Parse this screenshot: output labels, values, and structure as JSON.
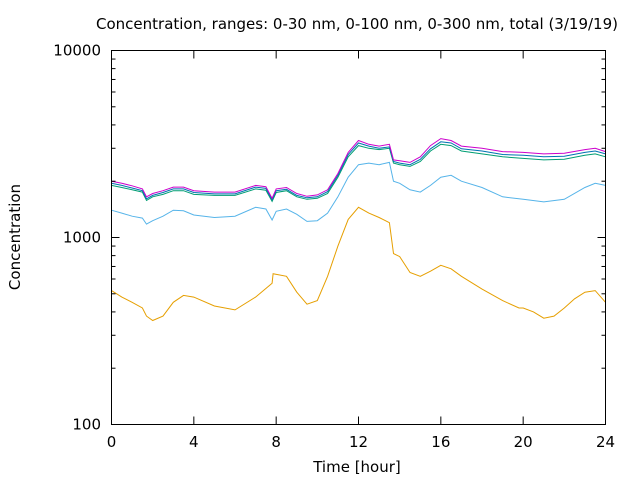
{
  "chart_data": {
    "type": "line",
    "title": "Concentration, ranges: 0-30 nm, 0-100 nm, 0-300 nm, total (3/19/19)",
    "xlabel": "Time [hour]",
    "ylabel": "Concentration",
    "xlim": [
      0,
      24
    ],
    "ylim": [
      100,
      10000
    ],
    "yscale": "log",
    "grid": false,
    "legend": "none",
    "xticks": [
      0,
      4,
      8,
      12,
      16,
      20,
      24
    ],
    "xtick_labels": [
      "0",
      "4",
      "8",
      "12",
      "16",
      "20",
      "24"
    ],
    "yticks": [
      100,
      1000,
      10000
    ],
    "ytick_labels": [
      "100",
      "1000",
      "10000"
    ],
    "series": [
      {
        "color": "#e69f00",
        "x": [
          0,
          0.5,
          1,
          1.5,
          1.7,
          2,
          2.5,
          3,
          3.5,
          4,
          5,
          6,
          7,
          7.8,
          7.85,
          8.5,
          9,
          9.5,
          10,
          10.5,
          11,
          11.5,
          12,
          12.5,
          13,
          13.5,
          13.7,
          14,
          14.5,
          15,
          15.5,
          16,
          16.5,
          17,
          18,
          19,
          19.8,
          20,
          20.5,
          21,
          21.5,
          22,
          22.5,
          23,
          23.5,
          24
        ],
        "y": [
          520,
          480,
          450,
          420,
          380,
          360,
          380,
          450,
          490,
          480,
          430,
          410,
          480,
          570,
          640,
          620,
          510,
          440,
          460,
          620,
          900,
          1250,
          1450,
          1350,
          1280,
          1200,
          820,
          790,
          650,
          620,
          660,
          710,
          680,
          620,
          530,
          460,
          420,
          420,
          400,
          370,
          380,
          420,
          470,
          510,
          520,
          450
        ]
      },
      {
        "color": "#56b4e9",
        "x": [
          0,
          0.5,
          1,
          1.5,
          1.7,
          2,
          2.5,
          3,
          3.5,
          4,
          5,
          6,
          7,
          7.5,
          7.8,
          8,
          8.5,
          9,
          9.5,
          10,
          10.5,
          11,
          11.5,
          12,
          12.5,
          13,
          13.5,
          13.7,
          14,
          14.5,
          15,
          15.5,
          16,
          16.5,
          17,
          18,
          19,
          20,
          21,
          22,
          23,
          23.5,
          24
        ],
        "y": [
          1400,
          1350,
          1300,
          1270,
          1180,
          1230,
          1300,
          1400,
          1390,
          1320,
          1280,
          1300,
          1450,
          1420,
          1240,
          1380,
          1420,
          1330,
          1220,
          1230,
          1350,
          1650,
          2100,
          2450,
          2500,
          2450,
          2520,
          2000,
          1950,
          1800,
          1750,
          1900,
          2100,
          2150,
          2000,
          1850,
          1650,
          1600,
          1550,
          1600,
          1850,
          1950,
          1900
        ]
      },
      {
        "color": "#009e73",
        "x": [
          0,
          0.5,
          1,
          1.5,
          1.7,
          2,
          2.5,
          3,
          3.5,
          4,
          5,
          6,
          7,
          7.5,
          7.8,
          8,
          8.5,
          9,
          9.5,
          10,
          10.5,
          11,
          11.5,
          12,
          12.5,
          13,
          13.5,
          13.7,
          14,
          14.5,
          15,
          15.5,
          16,
          16.5,
          17,
          18,
          19,
          20,
          21,
          22,
          23,
          23.5,
          24
        ],
        "y": [
          1900,
          1850,
          1800,
          1750,
          1580,
          1650,
          1700,
          1780,
          1780,
          1700,
          1680,
          1680,
          1820,
          1790,
          1560,
          1740,
          1780,
          1650,
          1600,
          1620,
          1720,
          2100,
          2700,
          3100,
          3000,
          2950,
          3000,
          2500,
          2450,
          2400,
          2550,
          2900,
          3150,
          3100,
          2900,
          2800,
          2700,
          2650,
          2600,
          2620,
          2750,
          2800,
          2700
        ]
      },
      {
        "color": "#0072b2",
        "x": [
          0,
          0.5,
          1,
          1.5,
          1.7,
          2,
          2.5,
          3,
          3.5,
          4,
          5,
          6,
          7,
          7.5,
          7.8,
          8,
          8.5,
          9,
          9.5,
          10,
          10.5,
          11,
          11.5,
          12,
          12.5,
          13,
          13.5,
          13.7,
          14,
          14.5,
          15,
          15.5,
          16,
          16.5,
          17,
          18,
          19,
          20,
          21,
          22,
          23,
          23.5,
          24
        ],
        "y": [
          1950,
          1900,
          1840,
          1780,
          1610,
          1680,
          1740,
          1820,
          1820,
          1740,
          1710,
          1710,
          1860,
          1830,
          1590,
          1780,
          1810,
          1680,
          1630,
          1650,
          1760,
          2150,
          2780,
          3200,
          3080,
          3000,
          3050,
          2550,
          2500,
          2450,
          2620,
          2980,
          3250,
          3200,
          2980,
          2900,
          2780,
          2750,
          2700,
          2720,
          2850,
          2900,
          2800
        ]
      },
      {
        "color": "#cc00cc",
        "x": [
          0,
          0.5,
          1,
          1.5,
          1.7,
          2,
          2.5,
          3,
          3.5,
          4,
          5,
          6,
          7,
          7.5,
          7.8,
          8,
          8.5,
          9,
          9.5,
          10,
          10.5,
          11,
          11.5,
          12,
          12.5,
          13,
          13.5,
          13.7,
          14,
          14.5,
          15,
          15.5,
          16,
          16.5,
          17,
          18,
          19,
          20,
          21,
          22,
          23,
          23.5,
          24
        ],
        "y": [
          2000,
          1950,
          1890,
          1820,
          1650,
          1720,
          1780,
          1860,
          1860,
          1780,
          1750,
          1750,
          1900,
          1870,
          1620,
          1820,
          1850,
          1720,
          1660,
          1690,
          1800,
          2200,
          2850,
          3300,
          3150,
          3080,
          3150,
          2600,
          2570,
          2520,
          2700,
          3100,
          3380,
          3300,
          3080,
          3000,
          2880,
          2850,
          2800,
          2820,
          2950,
          3000,
          2880
        ]
      }
    ]
  }
}
